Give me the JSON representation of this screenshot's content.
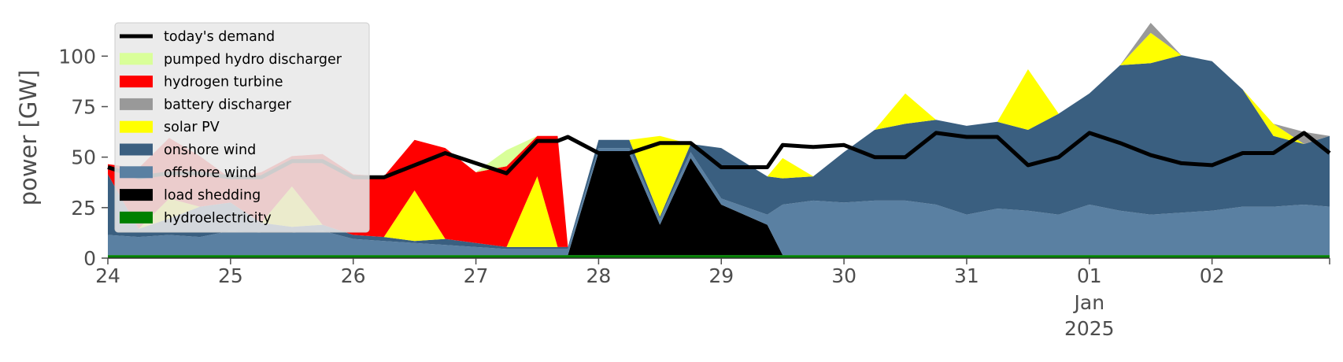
{
  "chart_data": {
    "type": "area",
    "title": "",
    "xlabel": "",
    "ylabel": "power [GW]",
    "ylim": [
      0,
      120
    ],
    "yticks": [
      0,
      25,
      50,
      75,
      100
    ],
    "ytick_labels": [
      "0",
      "25",
      "50",
      "75",
      "100"
    ],
    "xlim": [
      "2024-12-24T00:00",
      "2025-01-02T23:00"
    ],
    "xticks": [
      "2024-12-24",
      "2024-12-25",
      "2024-12-26",
      "2024-12-27",
      "2024-12-28",
      "2024-12-29",
      "2024-12-30",
      "2024-12-31",
      "2025-01-01",
      "2025-01-02"
    ],
    "xtick_labels": [
      "24",
      "25",
      "26",
      "27",
      "28",
      "29",
      "30",
      "31",
      "01",
      "02"
    ],
    "xtick_sublabel": [
      "Jan",
      "2025"
    ],
    "grid": false,
    "stacked": true,
    "legend_position": "upper-left",
    "x": [
      "2024-12-24T00:00",
      "2024-12-24T06:00",
      "2024-12-24T12:00",
      "2024-12-24T18:00",
      "2024-12-25T00:00",
      "2024-12-25T06:00",
      "2024-12-25T12:00",
      "2024-12-25T18:00",
      "2024-12-26T00:00",
      "2024-12-26T06:00",
      "2024-12-26T12:00",
      "2024-12-26T18:00",
      "2024-12-27T00:00",
      "2024-12-27T06:00",
      "2024-12-27T12:00",
      "2024-12-27T16:00",
      "2024-12-27T18:00",
      "2024-12-28T00:00",
      "2024-12-28T06:00",
      "2024-12-28T12:00",
      "2024-12-28T18:00",
      "2024-12-29T00:00",
      "2024-12-29T09:00",
      "2024-12-29T12:00",
      "2024-12-29T18:00",
      "2024-12-30T00:00",
      "2024-12-30T06:00",
      "2024-12-30T12:00",
      "2024-12-30T18:00",
      "2024-12-31T00:00",
      "2024-12-31T06:00",
      "2024-12-31T12:00",
      "2024-12-31T18:00",
      "2025-01-01T00:00",
      "2025-01-01T06:00",
      "2025-01-01T12:00",
      "2025-01-01T18:00",
      "2025-01-02T00:00",
      "2025-01-02T06:00",
      "2025-01-02T12:00",
      "2025-01-02T18:00",
      "2025-01-02T23:00"
    ],
    "series": [
      {
        "name": "hydroelectricity",
        "color": "#008000",
        "values": [
          1.5,
          1.5,
          1.5,
          1.5,
          1.5,
          1.5,
          1.5,
          1.5,
          1.5,
          1.5,
          1.5,
          1.5,
          1.5,
          1.5,
          1.5,
          1.5,
          1.5,
          1.5,
          1.5,
          1.5,
          1.5,
          1.5,
          1.5,
          1.5,
          1.5,
          1.5,
          1.5,
          1.5,
          1.5,
          1.5,
          1.5,
          1.5,
          1.5,
          1.5,
          1.5,
          1.5,
          1.5,
          1.5,
          1.5,
          1.5,
          1.5,
          1.5
        ]
      },
      {
        "name": "load shedding",
        "color": "#000000",
        "values": [
          0,
          0,
          0,
          0,
          0,
          0,
          0,
          0,
          0,
          0,
          0,
          0,
          0,
          0,
          0,
          0,
          0,
          51,
          50,
          15,
          48,
          25,
          15,
          0,
          0,
          0,
          0,
          0,
          0,
          0,
          0,
          0,
          0,
          0,
          0,
          0,
          0,
          0,
          0,
          0,
          0,
          0
        ]
      },
      {
        "name": "offshore wind",
        "color": "#5a80a2",
        "values": [
          10,
          9,
          10,
          9,
          12,
          11,
          11,
          12,
          8,
          7,
          6,
          5,
          4,
          3,
          3,
          3,
          3,
          2,
          3,
          3,
          3,
          3,
          5,
          25,
          27,
          26,
          27,
          27,
          25,
          20,
          23,
          22,
          20,
          25,
          22,
          20,
          21,
          22,
          24,
          24,
          25,
          24
        ]
      },
      {
        "name": "onshore wind",
        "color": "#3a5f80",
        "values": [
          30,
          4,
          8,
          15,
          14,
          5,
          3,
          3,
          2,
          2,
          1,
          3,
          2,
          1,
          1,
          1,
          1,
          4,
          4,
          1,
          4,
          25,
          19,
          13,
          12,
          25,
          35,
          38,
          42,
          44,
          43,
          40,
          50,
          55,
          72,
          75,
          78,
          74,
          58,
          35,
          30,
          35
        ]
      },
      {
        "name": "solar PV",
        "color": "#ffff00",
        "values": [
          0,
          0,
          10,
          0,
          0,
          0,
          20,
          0,
          0,
          0,
          25,
          0,
          0,
          0,
          35,
          0,
          0,
          0,
          0,
          40,
          0,
          0,
          0,
          10,
          0,
          0,
          0,
          15,
          0,
          0,
          0,
          30,
          0,
          0,
          0,
          15,
          0,
          0,
          0,
          6,
          0,
          0
        ]
      },
      {
        "name": "battery discharger",
        "color": "#999999",
        "values": [
          0,
          0,
          0,
          0,
          0,
          0,
          0,
          0,
          0,
          0,
          0,
          0,
          0,
          0,
          0,
          0,
          0,
          0,
          0,
          0,
          0,
          0,
          0,
          0,
          0,
          0,
          0,
          0,
          0,
          0,
          0,
          0,
          0,
          0,
          0,
          5,
          0,
          0,
          0,
          0,
          6,
          0
        ]
      },
      {
        "name": "hydrogen turbine",
        "color": "#ff0000",
        "values": [
          5,
          30,
          30,
          25,
          12,
          25,
          15,
          35,
          30,
          30,
          25,
          45,
          35,
          40,
          20,
          55,
          0,
          0,
          0,
          0,
          0,
          0,
          0,
          0,
          0,
          0,
          0,
          0,
          0,
          0,
          0,
          0,
          0,
          0,
          0,
          0,
          0,
          0,
          0,
          0,
          0,
          0
        ]
      },
      {
        "name": "pumped hydro discharger",
        "color": "#d9ff99",
        "values": [
          0,
          0,
          0,
          0,
          0,
          0,
          0,
          0,
          0,
          0,
          0,
          0,
          0,
          8,
          0,
          0,
          0,
          0,
          0,
          0,
          0,
          0,
          0,
          0,
          0,
          0,
          0,
          0,
          0,
          0,
          0,
          0,
          0,
          0,
          0,
          0,
          0,
          0,
          0,
          0,
          0,
          0
        ]
      }
    ],
    "demand": {
      "name": "today's demand",
      "color": "#000000",
      "values": [
        45,
        40,
        42,
        42,
        40,
        40,
        48,
        48,
        40,
        40,
        46,
        52,
        47,
        42,
        58,
        58,
        60,
        52,
        52,
        57,
        57,
        45,
        45,
        56,
        55,
        56,
        50,
        50,
        62,
        60,
        60,
        46,
        50,
        62,
        57,
        51,
        47,
        46,
        52,
        52,
        62,
        52
      ]
    }
  },
  "legend": {
    "items": [
      {
        "label": "today's demand",
        "color": "#000000",
        "kind": "line"
      },
      {
        "label": "pumped hydro discharger",
        "color": "#d9ff99",
        "kind": "patch"
      },
      {
        "label": "hydrogen turbine",
        "color": "#ff0000",
        "kind": "patch"
      },
      {
        "label": "battery discharger",
        "color": "#999999",
        "kind": "patch"
      },
      {
        "label": "solar PV",
        "color": "#ffff00",
        "kind": "patch"
      },
      {
        "label": "onshore wind",
        "color": "#3a5f80",
        "kind": "patch"
      },
      {
        "label": "offshore wind",
        "color": "#5a80a2",
        "kind": "patch"
      },
      {
        "label": "load shedding",
        "color": "#000000",
        "kind": "patch"
      },
      {
        "label": "hydroelectricity",
        "color": "#008000",
        "kind": "patch"
      }
    ]
  }
}
